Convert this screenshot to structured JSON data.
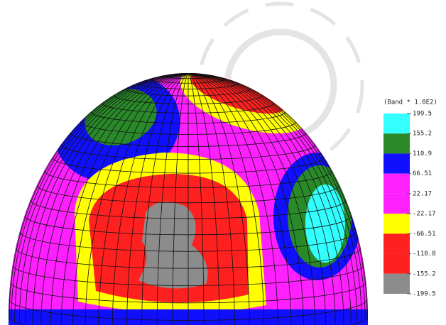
{
  "legend": {
    "title": "(Band * 1.0E2)",
    "levels": [
      199.5,
      155.2,
      110.9,
      66.51,
      22.17,
      -22.17,
      -66.51,
      -110.8,
      -155.2,
      -199.5
    ],
    "colors": [
      "#33ffff",
      "#2a8a2a",
      "#1010ff",
      "#ff20ff",
      "#ff20ff",
      "#ffff00",
      "#ff2020",
      "#ff2020",
      "#8c8c8c"
    ]
  }
}
